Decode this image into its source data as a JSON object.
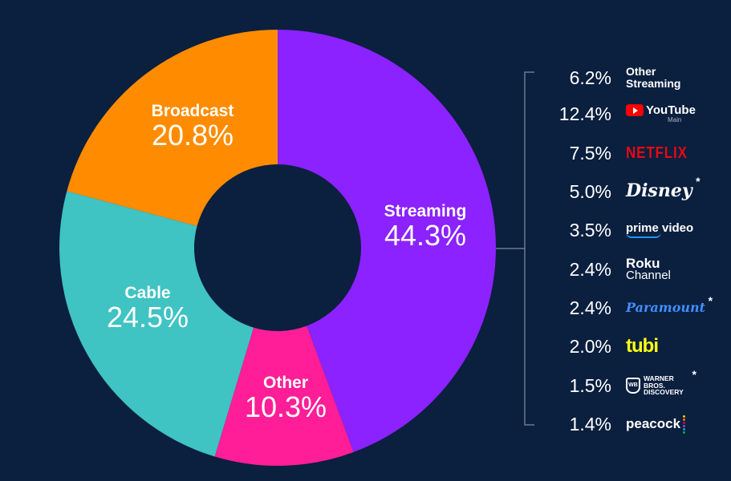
{
  "colors": {
    "background": "#0b1f3f",
    "streaming": "#8b22ff",
    "other": "#ff1e97",
    "cable": "#3fc3c3",
    "broadcast": "#ff8c00",
    "bracket": "#6d7891"
  },
  "chart_data": {
    "type": "donut",
    "categories": [
      "Streaming",
      "Other",
      "Cable",
      "Broadcast"
    ],
    "values": [
      44.3,
      10.3,
      24.5,
      20.8
    ],
    "value_labels": [
      "44.3%",
      "10.3%",
      "24.5%",
      "20.8%"
    ],
    "breakdown_of": "Streaming",
    "breakdown": [
      {
        "pct": "6.2%",
        "brand": "Other Streaming",
        "value": 6.2
      },
      {
        "pct": "12.4%",
        "brand": "YouTube",
        "sub": "Main",
        "value": 12.4
      },
      {
        "pct": "7.5%",
        "brand": "NETFLIX",
        "value": 7.5
      },
      {
        "pct": "5.0%",
        "brand": "Disney",
        "asterisk": "*",
        "value": 5.0
      },
      {
        "pct": "3.5%",
        "brand": "prime video",
        "value": 3.5
      },
      {
        "pct": "2.4%",
        "brand": "Roku",
        "sub": "Channel",
        "value": 2.4
      },
      {
        "pct": "2.4%",
        "brand": "Paramount",
        "asterisk": "*",
        "value": 2.4
      },
      {
        "pct": "2.0%",
        "brand": "tubi",
        "value": 2.0
      },
      {
        "pct": "1.5%",
        "brand": "WARNER BROS. DISCOVERY",
        "asterisk": "*",
        "value": 1.5
      },
      {
        "pct": "1.4%",
        "brand": "peacock",
        "value": 1.4
      }
    ]
  }
}
